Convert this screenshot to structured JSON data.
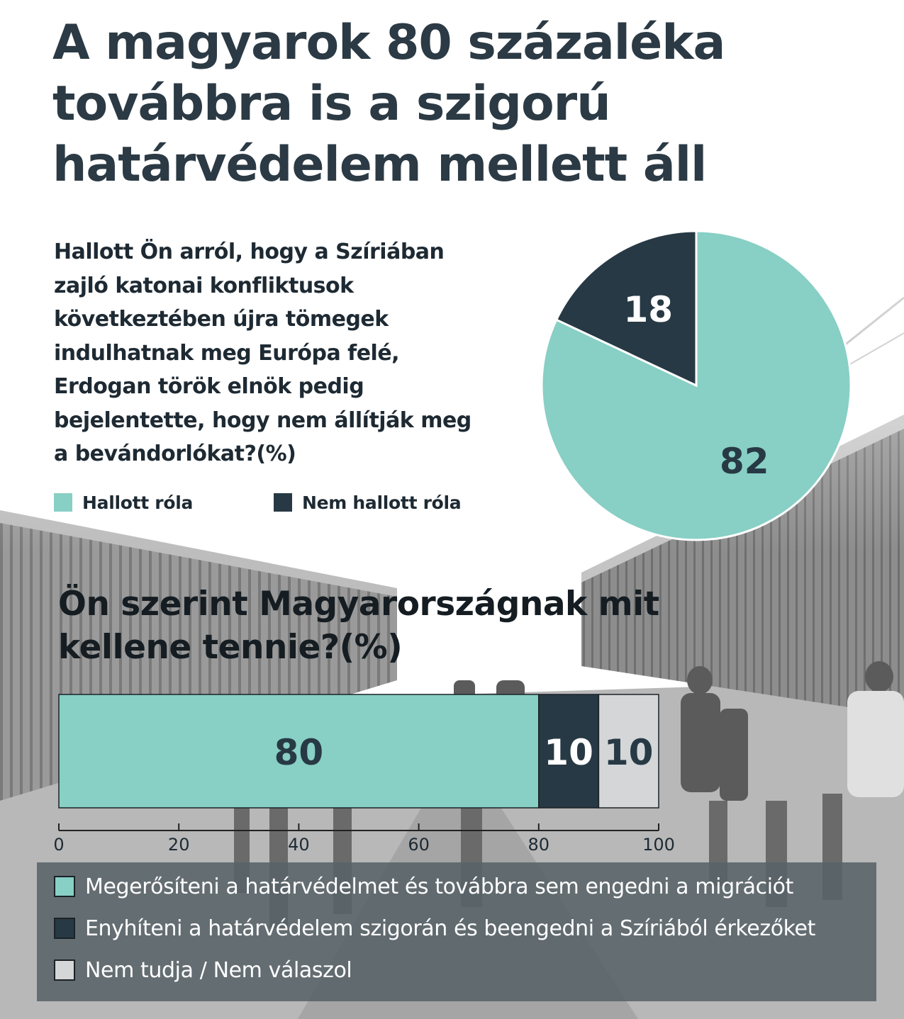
{
  "title": "A magyarok 80 százaléka továbbra is a szigorú határvédelem mellett áll",
  "colors": {
    "teal": "#88cfc5",
    "dark": "#273944",
    "light": "#d4d6d8"
  },
  "pie_chart": {
    "question": "Hallott Ön arról, hogy a Szíriában zajló katonai konfliktusok következtében újra tömegek indulhatnak meg Európa felé, Erdogan török elnök pedig bejelentette, hogy nem állítják meg a bevándorlókat?(%)",
    "legend": [
      {
        "label": "Hallott róla",
        "color": "#88cfc5"
      },
      {
        "label": "Nem hallott róla",
        "color": "#273944"
      }
    ]
  },
  "bar_chart": {
    "question": "Ön szerint Magyarországnak mit kellene tennie?(%)",
    "legend": [
      {
        "label": "Megerősíteni a határvédelmet és továbbra sem engedni a migrációt",
        "color": "#88cfc5"
      },
      {
        "label": "Enyhíteni a határvédelem szigorán és beengedni a Szíriából érkezőket",
        "color": "#273944"
      },
      {
        "label": "Nem tudja / Nem válaszol",
        "color": "#d4d6d8"
      }
    ]
  },
  "chart_data": [
    {
      "type": "pie",
      "categories": [
        "Hallott róla",
        "Nem hallott róla"
      ],
      "values": [
        82,
        18
      ],
      "data_labels": [
        "82",
        "18"
      ]
    },
    {
      "type": "bar",
      "orientation": "horizontal",
      "stacked": true,
      "categories": [
        ""
      ],
      "series": [
        {
          "name": "Megerősíteni a határvédelmet és továbbra sem engedni a migrációt",
          "values": [
            80
          ]
        },
        {
          "name": "Enyhíteni a határvédelem szigorán és beengedni a Szíriából érkezőket",
          "values": [
            10
          ]
        },
        {
          "name": "Nem tudja / Nem válaszol",
          "values": [
            10
          ]
        }
      ],
      "data_labels": [
        "80",
        "10",
        "10"
      ],
      "xlim": [
        0,
        100
      ],
      "xticks": [
        "0",
        "20",
        "40",
        "60",
        "80",
        "100"
      ]
    }
  ]
}
